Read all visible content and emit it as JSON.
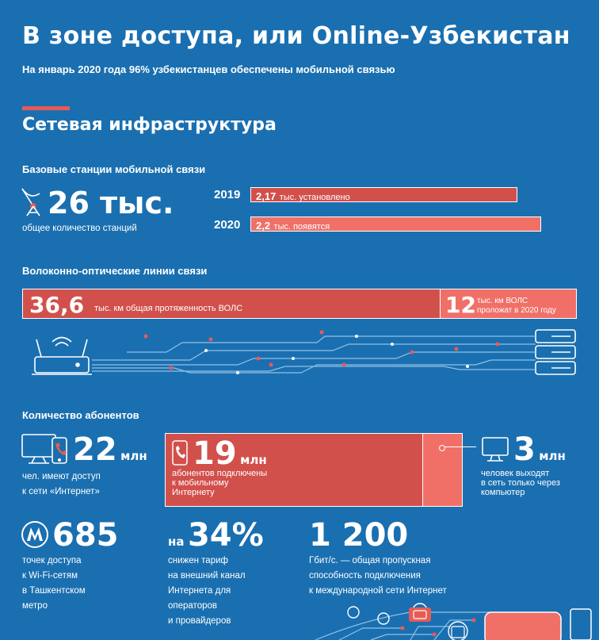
{
  "header": {
    "title": "В зоне доступа, или Online-Узбекистан",
    "subtitle": "На январь 2020 года 96% узбекистанцев обеспечены мобильной связью"
  },
  "section": {
    "title": "Сетевая инфраструктура"
  },
  "base_stations": {
    "heading": "Базовые станции мобильной связи",
    "total_value": "26 тыс.",
    "total_caption": "общее количество станций",
    "rows": [
      {
        "year": "2019",
        "value": "2,17",
        "text": "тыс. установлено",
        "fill": 0.92
      },
      {
        "year": "2020",
        "value": "2,2",
        "text": "тыс. появятся",
        "fill": 1.0
      }
    ]
  },
  "fiber": {
    "heading": "Волоконно-оптические линии связи",
    "total_value": "36,6",
    "total_text": "тыс. км общая протяженность ВОЛС",
    "new_value": "12",
    "new_text_1": "тыс. км ВОЛС",
    "new_text_2": "проложат в 2020 году"
  },
  "subscribers": {
    "heading": "Количество абонентов",
    "internet": {
      "value": "22",
      "unit": "млн",
      "caption_1": "чел. имеют доступ",
      "caption_2": "к сети «Интернет»"
    },
    "mobile": {
      "value": "19",
      "unit": "млн",
      "caption_1": "абонентов подключены",
      "caption_2": "к мобильному",
      "caption_3": "Интернету"
    },
    "computer": {
      "value": "3",
      "unit": "млн",
      "caption_1": "человек выходят",
      "caption_2": "в сеть только через",
      "caption_3": "компьютер"
    }
  },
  "stats": {
    "wifi": {
      "value": "685",
      "caption_1": "точек доступа",
      "caption_2": "к Wi-Fi-сетям",
      "caption_3": "в Ташкентском",
      "caption_4": "метро",
      "icon": "metro-icon"
    },
    "tariff": {
      "prefix": "на",
      "value": "34%",
      "caption_1": "снижен тариф",
      "caption_2": "на внешний канал",
      "caption_3": "Интернета для",
      "caption_4": "операторов",
      "caption_5": "и провайдеров"
    },
    "bandwidth": {
      "value": "1 200",
      "caption_1": "Гбит/с. — общая пропускная",
      "caption_2": "способность подключения",
      "caption_3": "к международной сети Интернет"
    }
  },
  "colors": {
    "background": "#1a6fb0",
    "accent": "#e85b55",
    "accent_dark": "#d2504c",
    "accent_light": "#f07068"
  }
}
